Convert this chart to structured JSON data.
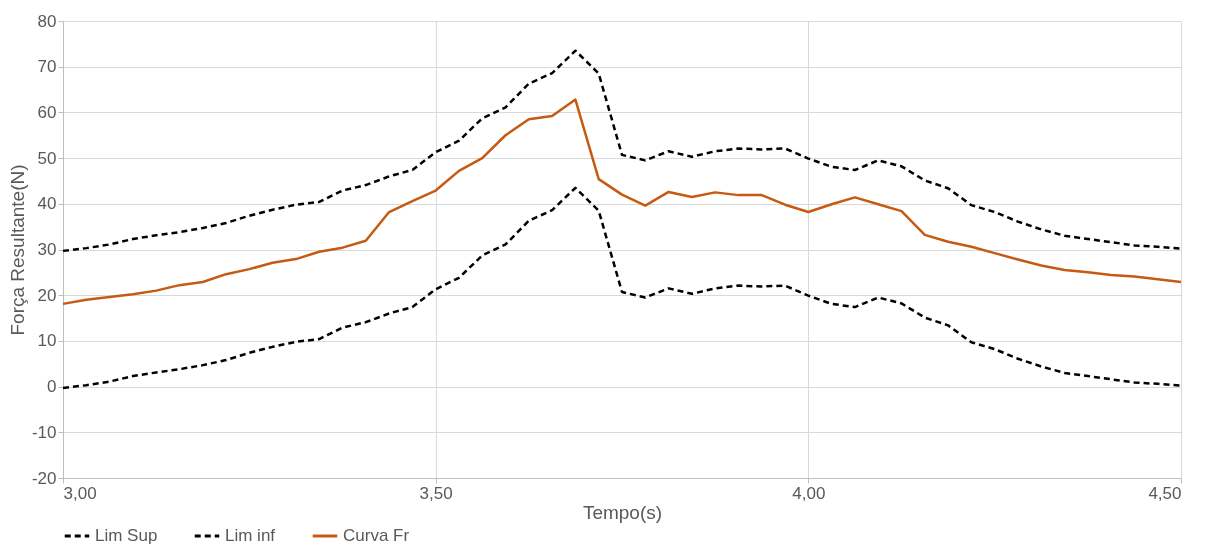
{
  "chart_data": {
    "type": "line",
    "xlabel": "Tempo(s)",
    "ylabel": "Força Resultante(N)",
    "x": [
      3.0,
      3.03125,
      3.0625,
      3.09375,
      3.125,
      3.15625,
      3.1875,
      3.21875,
      3.25,
      3.28125,
      3.3125,
      3.34375,
      3.375,
      3.40625,
      3.4375,
      3.46875,
      3.5,
      3.53125,
      3.5625,
      3.59375,
      3.625,
      3.65625,
      3.6875,
      3.71875,
      3.75,
      3.78125,
      3.8125,
      3.84375,
      3.875,
      3.90625,
      3.9375,
      3.96875,
      4.0,
      4.03125,
      4.0625,
      4.09375,
      4.125,
      4.15625,
      4.1875,
      4.21875,
      4.25,
      4.28125,
      4.3125,
      4.34375,
      4.375,
      4.40625,
      4.4375,
      4.46875,
      4.5
    ],
    "series": [
      {
        "name": "Lim Sup",
        "color": "#000000",
        "line_style": "dashed",
        "values": [
          29.7,
          30.3,
          31.1,
          32.3,
          33.1,
          33.8,
          34.7,
          35.8,
          37.4,
          38.7,
          39.8,
          40.4,
          42.9,
          44.1,
          46.0,
          47.4,
          51.3,
          53.8,
          58.7,
          61.1,
          66.3,
          68.6,
          73.5,
          68.5,
          50.7,
          49.5,
          51.5,
          50.3,
          51.5,
          52.1,
          51.9,
          52.1,
          49.9,
          48.1,
          47.4,
          49.5,
          48.2,
          45.1,
          43.4,
          39.7,
          38.2,
          36.1,
          34.4,
          33.0,
          32.3,
          31.6,
          30.9,
          30.6,
          30.2
        ]
      },
      {
        "name": "Lim inf",
        "color": "#000000",
        "line_style": "dashed",
        "values": [
          -0.3,
          0.3,
          1.1,
          2.3,
          3.1,
          3.8,
          4.7,
          5.8,
          7.4,
          8.7,
          9.8,
          10.4,
          12.9,
          14.1,
          16.0,
          17.4,
          21.3,
          23.8,
          28.7,
          31.1,
          36.3,
          38.6,
          43.5,
          38.5,
          20.7,
          19.5,
          21.5,
          20.3,
          21.5,
          22.1,
          21.9,
          22.1,
          19.9,
          18.1,
          17.4,
          19.5,
          18.2,
          15.1,
          13.4,
          9.7,
          8.2,
          6.1,
          4.4,
          3.0,
          2.3,
          1.6,
          0.9,
          0.6,
          0.2
        ]
      },
      {
        "name": "Curva Fr",
        "color": "#c55a11",
        "line_style": "solid",
        "values": [
          18.1,
          19.0,
          19.6,
          20.2,
          21.0,
          22.2,
          22.9,
          24.6,
          25.7,
          27.1,
          27.9,
          29.5,
          30.4,
          31.9,
          38.2,
          40.6,
          42.9,
          47.2,
          50.0,
          55.0,
          58.5,
          59.2,
          62.8,
          45.4,
          42.0,
          39.6,
          42.6,
          41.5,
          42.5,
          41.9,
          41.9,
          39.8,
          38.2,
          39.9,
          41.4,
          39.9,
          38.4,
          33.2,
          31.7,
          30.6,
          29.2,
          27.8,
          26.5,
          25.5,
          25.0,
          24.4,
          24.1,
          23.5,
          22.9
        ]
      }
    ],
    "xlim": [
      3.0,
      4.5
    ],
    "xticks": [
      {
        "value": 3.0,
        "label": "3,00"
      },
      {
        "value": 3.5,
        "label": "3,50"
      },
      {
        "value": 4.0,
        "label": "4,00"
      },
      {
        "value": 4.5,
        "label": "4,50"
      }
    ],
    "ylim": [
      -20,
      80
    ],
    "yticks": [
      -20,
      -10,
      0,
      10,
      20,
      30,
      40,
      50,
      60,
      70,
      80
    ],
    "grid": true,
    "legend": "bottom",
    "marker": "none"
  }
}
